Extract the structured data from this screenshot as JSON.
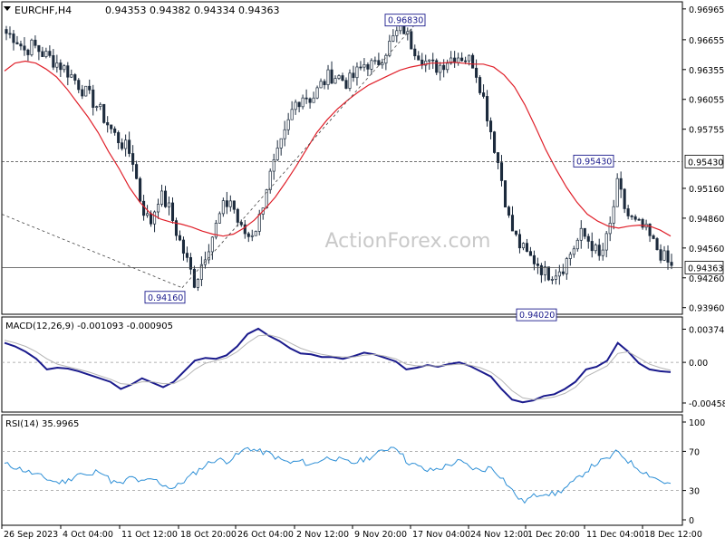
{
  "header": {
    "symbol": "EURCHF,H4",
    "ohlc": "0.94353 0.94382 0.94334 0.94363"
  },
  "watermark": "ActionForex.com",
  "colors": {
    "candles": "#1c2b3d",
    "moving_average": "#e0202a",
    "macd_line": "#1a1a8c",
    "signal_line": "#b4b4b4",
    "rsi_line": "#2d8fd6",
    "levels": "#444444",
    "frame": "#000000",
    "grid_dash": "#999999",
    "price_tag_bg": "#ffffff"
  },
  "chart_data": [
    {
      "type": "candlestick",
      "panel": "price",
      "title": "EURCHF,H4",
      "ylim": [
        0.9393,
        0.97
      ],
      "y_ticks": [
        "0.96965",
        "0.96655",
        "0.96355",
        "0.96055",
        "0.95755",
        "0.95160",
        "0.94860",
        "0.94560",
        "0.94260",
        "0.93960"
      ],
      "x_tick_labels": [
        "26 Sep 2023",
        "4 Oct 04:00",
        "11 Oct 12:00",
        "18 Oct 20:00",
        "26 Oct 04:00",
        "2 Nov 12:00",
        "9 Nov 20:00",
        "17 Nov 04:00",
        "24 Nov 12:00",
        "1 Dec 20:00",
        "11 Dec 04:00",
        "18 Dec 12:00"
      ],
      "close_series": [
        0.9672,
        0.9668,
        0.9655,
        0.966,
        0.9652,
        0.9646,
        0.964,
        0.9632,
        0.9621,
        0.961,
        0.96,
        0.9585,
        0.957,
        0.956,
        0.9548,
        0.95,
        0.948,
        0.951,
        0.9498,
        0.947,
        0.9445,
        0.942,
        0.9448,
        0.947,
        0.9495,
        0.9505,
        0.9475,
        0.9468,
        0.948,
        0.952,
        0.9545,
        0.957,
        0.96,
        0.961,
        0.9606,
        0.962,
        0.963,
        0.9628,
        0.9622,
        0.9632,
        0.9643,
        0.9638,
        0.9652,
        0.9666,
        0.968,
        0.9662,
        0.965,
        0.964,
        0.9638,
        0.9645,
        0.965,
        0.9648,
        0.9642,
        0.961,
        0.957,
        0.953,
        0.948,
        0.946,
        0.9448,
        0.9442,
        0.943,
        0.9432,
        0.9438,
        0.9455,
        0.947,
        0.9462,
        0.9445,
        0.947,
        0.952,
        0.949,
        0.948,
        0.9475,
        0.946,
        0.9448,
        0.9436
      ],
      "moving_average": [
        0.9634,
        0.9642,
        0.9644,
        0.9642,
        0.9636,
        0.9628,
        0.9616,
        0.9602,
        0.9588,
        0.9572,
        0.9553,
        0.9536,
        0.9517,
        0.9502,
        0.9491,
        0.9485,
        0.9482,
        0.948,
        0.9477,
        0.9473,
        0.947,
        0.9468,
        0.947,
        0.9476,
        0.9484,
        0.9495,
        0.9507,
        0.9522,
        0.9538,
        0.9555,
        0.9572,
        0.9585,
        0.9596,
        0.9605,
        0.9613,
        0.962,
        0.9625,
        0.963,
        0.9635,
        0.9638,
        0.964,
        0.9642,
        0.9642,
        0.9643,
        0.9642,
        0.9641,
        0.9641,
        0.9638,
        0.963,
        0.9618,
        0.96,
        0.9578,
        0.9555,
        0.9535,
        0.9517,
        0.9502,
        0.949,
        0.9483,
        0.9478,
        0.9476,
        0.9478,
        0.9479,
        0.9478,
        0.9474,
        0.9468
      ],
      "levels": [
        {
          "value": 0.9543,
          "label": "0.95430"
        },
        {
          "value": 0.94363,
          "label": "0.94363"
        }
      ],
      "annotations": [
        {
          "label": "0.94160",
          "value": 0.9416
        },
        {
          "label": "0.96830",
          "value": 0.9683
        },
        {
          "label": "0.95430",
          "value": 0.9543
        },
        {
          "label": "0.94020",
          "value": 0.9402
        }
      ],
      "trendlines": [
        {
          "from": [
            0,
            0.949
          ],
          "to": [
            0.265,
            0.9416
          ]
        },
        {
          "from": [
            0.265,
            0.9416
          ],
          "to": [
            0.61,
            0.9683
          ]
        }
      ]
    },
    {
      "type": "line",
      "panel": "macd",
      "title": "MACD(12,26,9) -0.001093 -0.000905",
      "ylim": [
        -0.0052,
        0.0041
      ],
      "y_ticks": [
        "0.003743",
        "0.00",
        "-0.004585"
      ],
      "zero_level": 0,
      "series": [
        {
          "name": "MACD",
          "values": [
            0.0022,
            0.0018,
            0.0012,
            0.0004,
            -0.0008,
            -0.0006,
            -0.0007,
            -0.001,
            -0.0014,
            -0.0018,
            -0.0022,
            -0.003,
            -0.0025,
            -0.0018,
            -0.0023,
            -0.0028,
            -0.0022,
            -0.001,
            0.0002,
            0.0005,
            0.0004,
            0.0008,
            0.0018,
            0.0032,
            0.0038,
            0.003,
            0.0024,
            0.0016,
            0.001,
            0.0009,
            0.0006,
            0.0006,
            0.0004,
            0.0007,
            0.0011,
            0.0009,
            0.0005,
            0.0001,
            -0.0008,
            -0.0006,
            -0.0003,
            -0.0005,
            -0.0002,
            0.0,
            -0.0004,
            -0.001,
            -0.0016,
            -0.003,
            -0.0042,
            -0.0045,
            -0.0043,
            -0.0038,
            -0.0036,
            -0.003,
            -0.0022,
            -0.0008,
            -0.0005,
            0.0002,
            0.0022,
            0.0012,
            -0.0001,
            -0.0008,
            -0.001,
            -0.0011
          ]
        },
        {
          "name": "Signal",
          "values": [
            0.0025,
            0.0022,
            0.0018,
            0.0012,
            0.0004,
            -0.0002,
            -0.0005,
            -0.0008,
            -0.0011,
            -0.0015,
            -0.0019,
            -0.0024,
            -0.0025,
            -0.0022,
            -0.0022,
            -0.0024,
            -0.0024,
            -0.0018,
            -0.0008,
            -0.0001,
            0.0002,
            0.0005,
            0.0012,
            0.0022,
            0.003,
            0.0031,
            0.0028,
            0.0022,
            0.0016,
            0.0012,
            0.0009,
            0.0007,
            0.0006,
            0.0006,
            0.0008,
            0.0009,
            0.0007,
            0.0004,
            -0.0002,
            -0.0004,
            -0.0004,
            -0.0004,
            -0.0003,
            -0.0002,
            -0.0003,
            -0.0006,
            -0.0011,
            -0.002,
            -0.0032,
            -0.004,
            -0.0042,
            -0.0041,
            -0.0039,
            -0.0035,
            -0.0028,
            -0.0016,
            -0.001,
            -0.0004,
            0.001,
            0.0012,
            0.0005,
            -0.0002,
            -0.0006,
            -0.0009
          ]
        }
      ]
    },
    {
      "type": "line",
      "panel": "rsi",
      "title": "RSI(14) 35.9965",
      "ylim": [
        0,
        100
      ],
      "y_ticks": [
        "100",
        "70",
        "30",
        "0"
      ],
      "levels": [
        70,
        30
      ],
      "series": [
        {
          "name": "RSI",
          "values": [
            57,
            54,
            50,
            46,
            42,
            38,
            40,
            48,
            44,
            52,
            40,
            36,
            44,
            38,
            42,
            36,
            32,
            40,
            48,
            56,
            62,
            60,
            66,
            74,
            70,
            68,
            62,
            58,
            60,
            56,
            62,
            64,
            60,
            58,
            62,
            66,
            72,
            76,
            60,
            55,
            50,
            52,
            56,
            60,
            54,
            50,
            54,
            44,
            30,
            18,
            24,
            28,
            26,
            32,
            40,
            50,
            58,
            62,
            70,
            60,
            52,
            46,
            40,
            36
          ]
        }
      ]
    }
  ]
}
